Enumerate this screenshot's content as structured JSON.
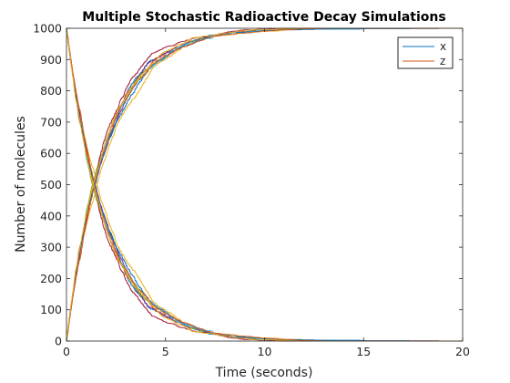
{
  "chart_data": {
    "type": "line",
    "title": "Multiple Stochastic Radioactive Decay Simulations",
    "xlabel": "Time (seconds)",
    "ylabel": "Number of molecules",
    "xlim": [
      0,
      20
    ],
    "ylim": [
      0,
      1000
    ],
    "xticks": [
      0,
      5,
      10,
      15,
      20
    ],
    "yticks": [
      0,
      100,
      200,
      300,
      400,
      500,
      600,
      700,
      800,
      900,
      1000
    ],
    "grid": false,
    "legend": {
      "position": "top-right",
      "entries": [
        "x",
        "z"
      ]
    },
    "initial_x": 1000,
    "decay_rate": 0.5,
    "simulations": 10,
    "series": [
      {
        "name": "x",
        "color": "#0072BD",
        "points": [
          [
            0,
            1000
          ],
          [
            1,
            606
          ],
          [
            1.4,
            497
          ],
          [
            2,
            368
          ],
          [
            3,
            223
          ],
          [
            4,
            135
          ],
          [
            5,
            82
          ],
          [
            6,
            50
          ],
          [
            7,
            30
          ],
          [
            8,
            18
          ],
          [
            9,
            11
          ],
          [
            10,
            7
          ],
          [
            11,
            4
          ],
          [
            12,
            2
          ],
          [
            14,
            0
          ],
          [
            20,
            0
          ]
        ]
      },
      {
        "name": "z",
        "color": "#D95319",
        "points": [
          [
            0,
            0
          ],
          [
            1,
            394
          ],
          [
            1.4,
            503
          ],
          [
            2,
            632
          ],
          [
            3,
            777
          ],
          [
            4,
            865
          ],
          [
            5,
            918
          ],
          [
            6,
            950
          ],
          [
            7,
            970
          ],
          [
            8,
            982
          ],
          [
            9,
            989
          ],
          [
            10,
            993
          ],
          [
            11,
            996
          ],
          [
            12,
            998
          ],
          [
            14,
            1000
          ],
          [
            20,
            1000
          ]
        ]
      }
    ],
    "run_colors": [
      "#0072BD",
      "#D95319",
      "#EDB120",
      "#7E2F8E",
      "#77AC30",
      "#4DBEEE",
      "#A2142F"
    ]
  }
}
